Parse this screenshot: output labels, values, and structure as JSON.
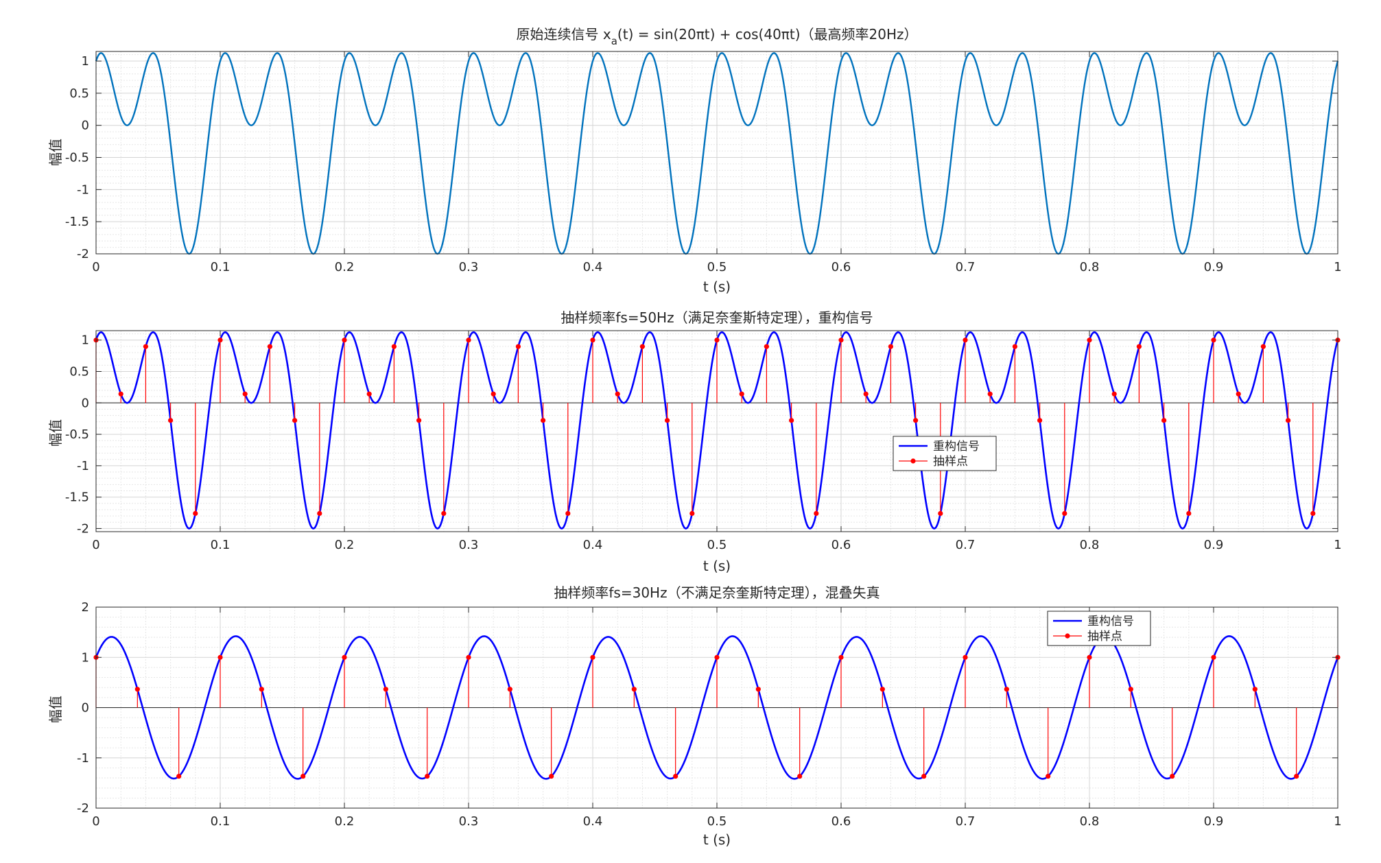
{
  "chart_data": [
    {
      "type": "line",
      "title": "原始连续信号 x_a(t) = sin(20πt) + cos(40πt)（最高频率20Hz）",
      "title_main": "原始连续信号 x",
      "title_sub": "a",
      "title_rest": "(t) = sin(20πt) + cos(40πt)（最高频率20Hz）",
      "xlabel": "t (s)",
      "ylabel": "幅值",
      "xlim": [
        0,
        1
      ],
      "ylim": [
        -2,
        1.15
      ],
      "xticks": [
        "0",
        "0.1",
        "0.2",
        "0.3",
        "0.4",
        "0.5",
        "0.6",
        "0.7",
        "0.8",
        "0.9",
        "1"
      ],
      "yticks": [
        "1",
        "0.5",
        "0",
        "-0.5",
        "-1",
        "-1.5",
        "-2"
      ],
      "ytick_values": [
        1,
        0.5,
        0,
        -0.5,
        -1,
        -1.5,
        -2
      ],
      "grid": true,
      "minor_grid": true,
      "series": [
        {
          "signal": "sin(20πt) + cos(40πt)",
          "color": "#0072BD",
          "t_start": 0,
          "t_end": 1
        }
      ]
    },
    {
      "type": "line+stem",
      "title": "抽样频率fs=50Hz（满足奈奎斯特定理），重构信号",
      "xlabel": "t (s)",
      "ylabel": "幅值",
      "xlim": [
        0,
        1
      ],
      "ylim": [
        -2.05,
        1.15
      ],
      "xticks": [
        "0",
        "0.1",
        "0.2",
        "0.3",
        "0.4",
        "0.5",
        "0.6",
        "0.7",
        "0.8",
        "0.9",
        "1"
      ],
      "yticks": [
        "1",
        "0.5",
        "0",
        "-0.5",
        "-1",
        "-1.5",
        "-2"
      ],
      "ytick_values": [
        1,
        0.5,
        0,
        -0.5,
        -1,
        -1.5,
        -2
      ],
      "grid": true,
      "minor_grid": true,
      "sampling_rate_hz": 50,
      "legend_position": "center-right",
      "series": [
        {
          "name": "重构信号",
          "kind": "line",
          "signal": "sin(20πt) + cos(40πt)",
          "color": "#0000FF"
        },
        {
          "name": "抽样点",
          "kind": "stem",
          "signal": "sin(20πt) + cos(40πt) at t = n/50",
          "color": "#FF0000"
        }
      ]
    },
    {
      "type": "line+stem",
      "title": "抽样频率fs=30Hz（不满足奈奎斯特定理），混叠失真",
      "xlabel": "t (s)",
      "ylabel": "幅值",
      "xlim": [
        0,
        1
      ],
      "ylim": [
        -2,
        2
      ],
      "xticks": [
        "0",
        "0.1",
        "0.2",
        "0.3",
        "0.4",
        "0.5",
        "0.6",
        "0.7",
        "0.8",
        "0.9",
        "1"
      ],
      "yticks": [
        "2",
        "1",
        "0",
        "-1",
        "-2"
      ],
      "ytick_values": [
        2,
        1,
        0,
        -1,
        -2
      ],
      "grid": true,
      "minor_grid": true,
      "sampling_rate_hz": 30,
      "legend_position": "top-right",
      "series": [
        {
          "name": "重构信号",
          "kind": "line",
          "signal": "sinc interpolation of samples at fs = 30Hz (aliased)",
          "color": "#0000FF"
        },
        {
          "name": "抽样点",
          "kind": "stem",
          "signal": "sin(20πt) + cos(40πt) at t = n/30",
          "color": "#FF0000"
        }
      ]
    }
  ]
}
